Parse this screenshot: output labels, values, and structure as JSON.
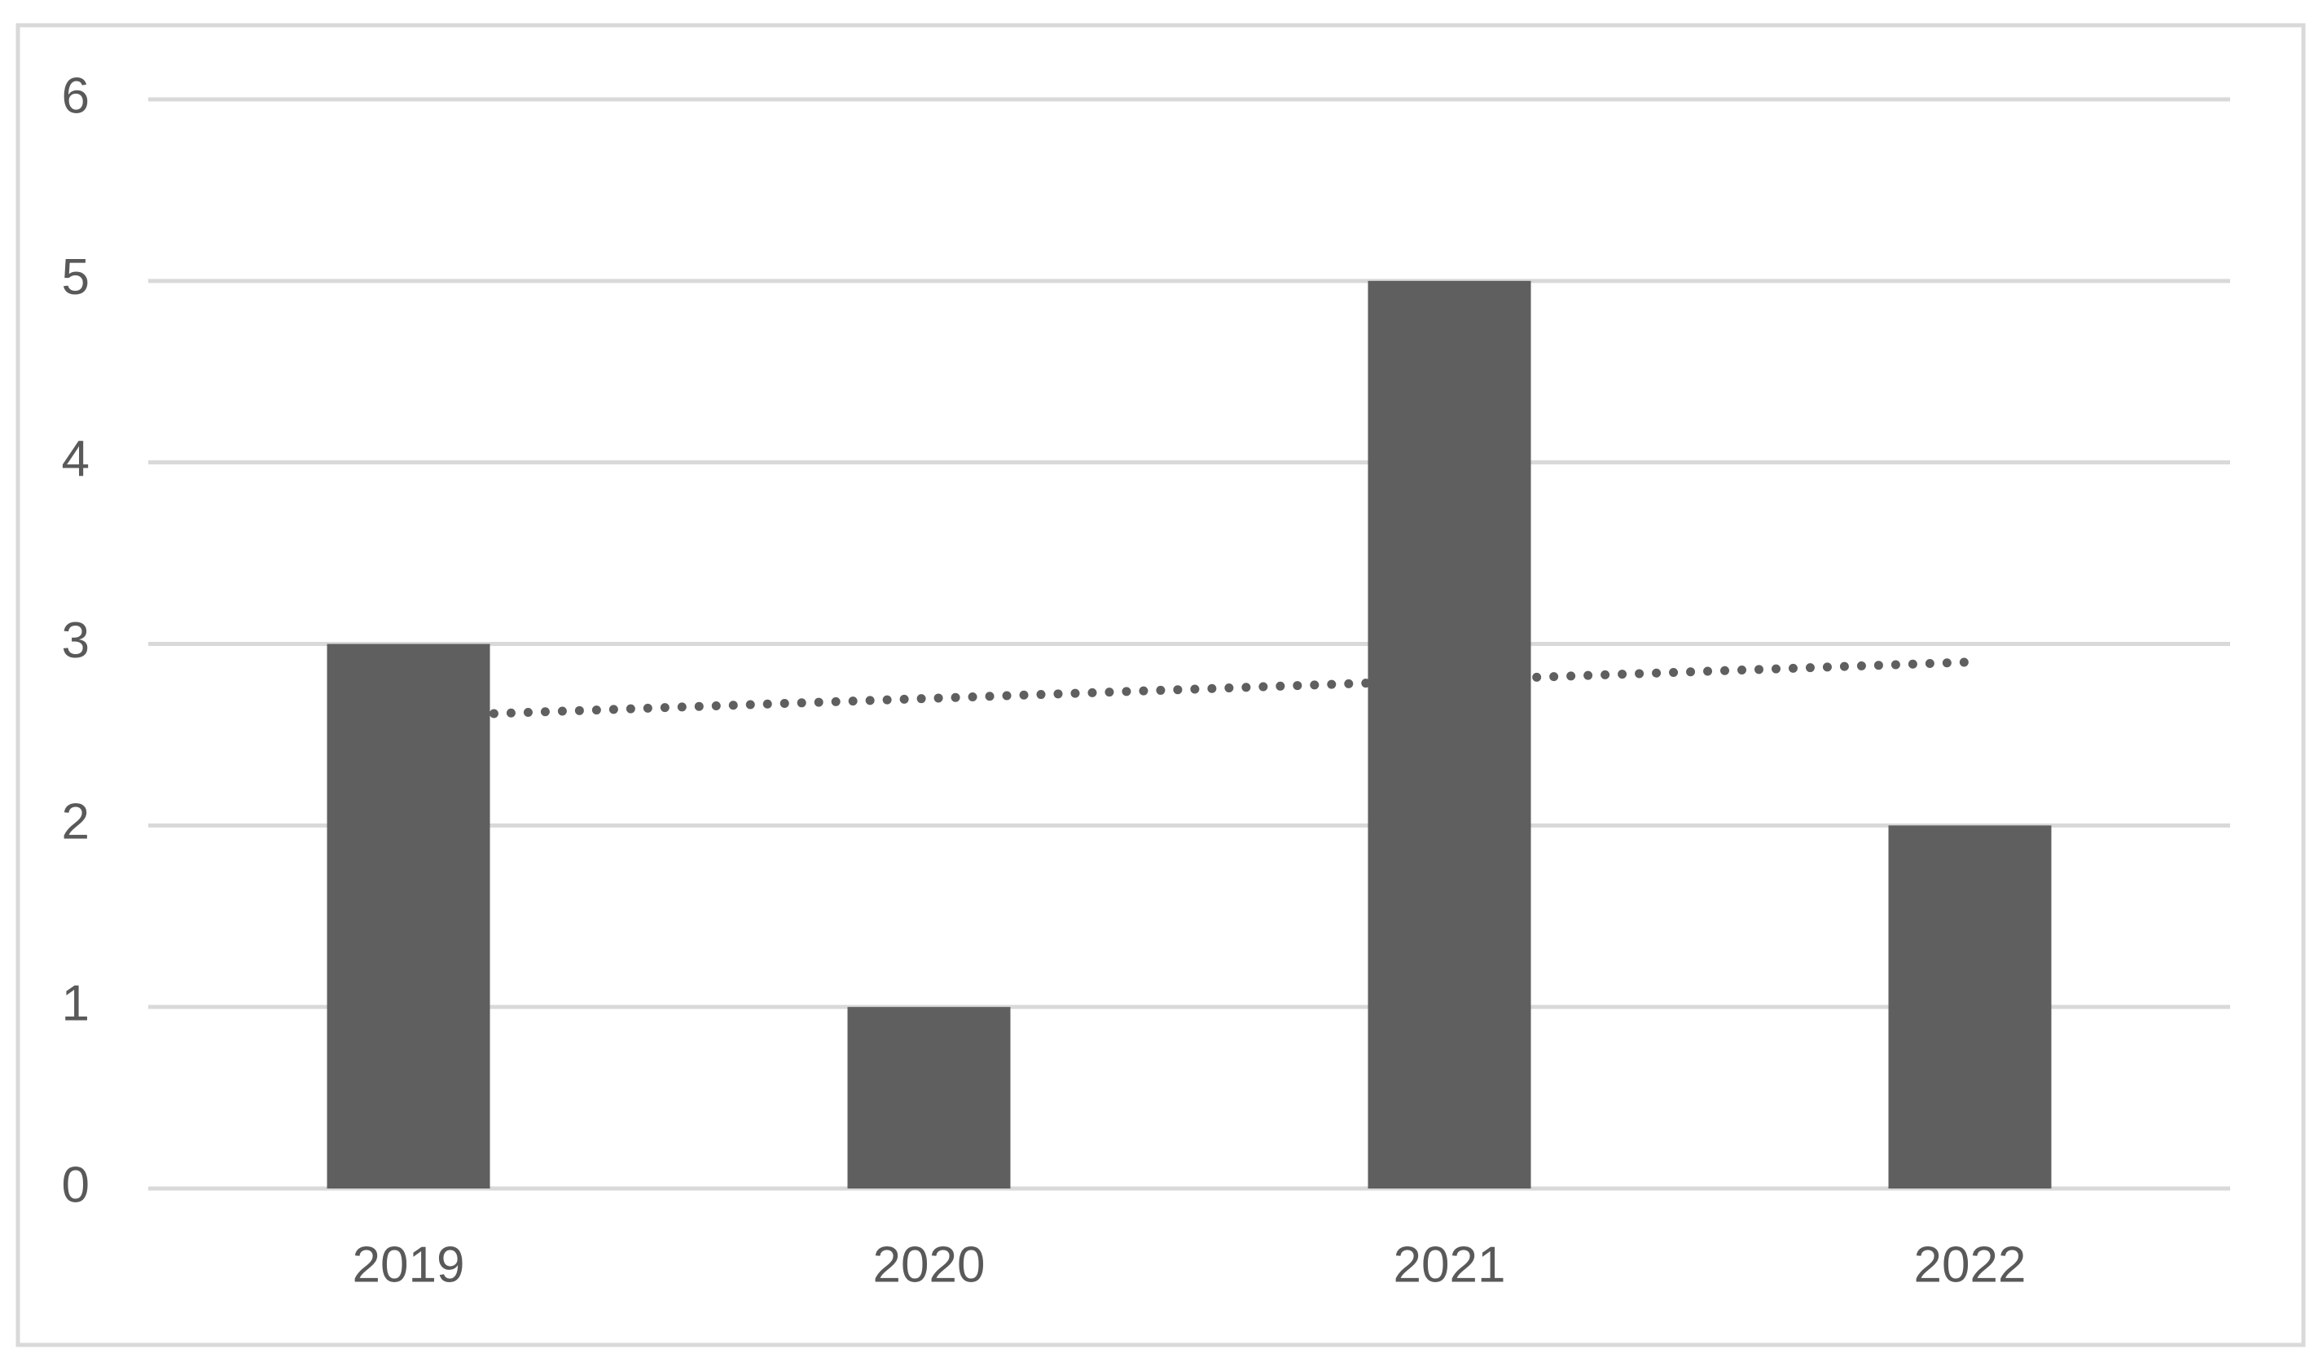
{
  "chart_data": {
    "type": "bar",
    "categories": [
      "2019",
      "2020",
      "2021",
      "2022"
    ],
    "values": [
      3,
      1,
      5,
      2
    ],
    "color": "#5f5f5f",
    "ylim": [
      0,
      6
    ],
    "yticks": [
      0,
      1,
      2,
      3,
      4,
      5,
      6
    ],
    "grid": true,
    "trendline": "linear"
  }
}
